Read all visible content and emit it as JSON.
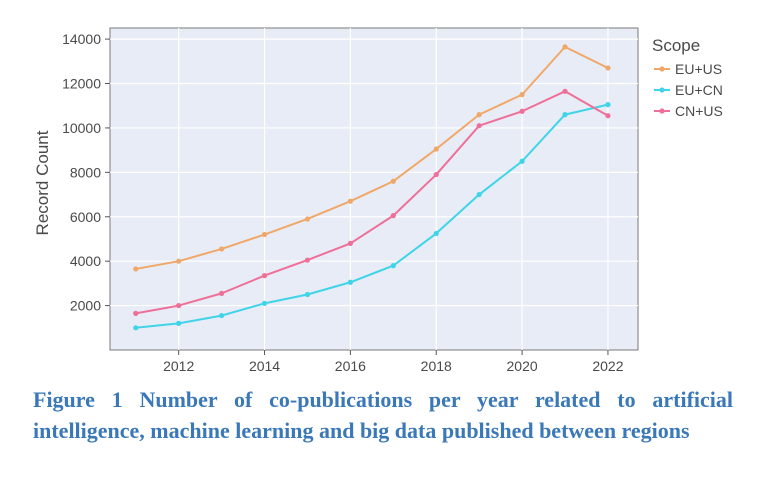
{
  "chart_data": {
    "type": "line",
    "title": "",
    "xlabel": "",
    "ylabel": "Record Count",
    "x": [
      2011,
      2012,
      2013,
      2014,
      2015,
      2016,
      2017,
      2018,
      2019,
      2020,
      2021,
      2022
    ],
    "xlim": [
      2010.4,
      2022.7
    ],
    "ylim": [
      0,
      14500
    ],
    "xticks": [
      "2012",
      "2014",
      "2016",
      "2018",
      "2020",
      "2022"
    ],
    "yticks": [
      "2000",
      "4000",
      "6000",
      "8000",
      "10000",
      "12000",
      "14000"
    ],
    "grid": true,
    "legend_title": "Scope",
    "legend_position": "right",
    "series": [
      {
        "name": "EU+US",
        "color": "#f0a86a",
        "values": [
          3650,
          4000,
          4550,
          5200,
          5900,
          6700,
          7600,
          9050,
          10600,
          11500,
          13650,
          12700
        ]
      },
      {
        "name": "EU+CN",
        "color": "#3fd4e8",
        "values": [
          1000,
          1200,
          1550,
          2100,
          2500,
          3050,
          3800,
          5250,
          7000,
          8500,
          10600,
          11050
        ]
      },
      {
        "name": "CN+US",
        "color": "#ee6f98",
        "values": [
          1650,
          2000,
          2550,
          3350,
          4050,
          4800,
          6050,
          7900,
          10100,
          10750,
          11650,
          10550
        ]
      }
    ]
  },
  "caption": "Figure 1 Number of co-publications per year related to artificial intelligence, machine learning and big data published between regions"
}
